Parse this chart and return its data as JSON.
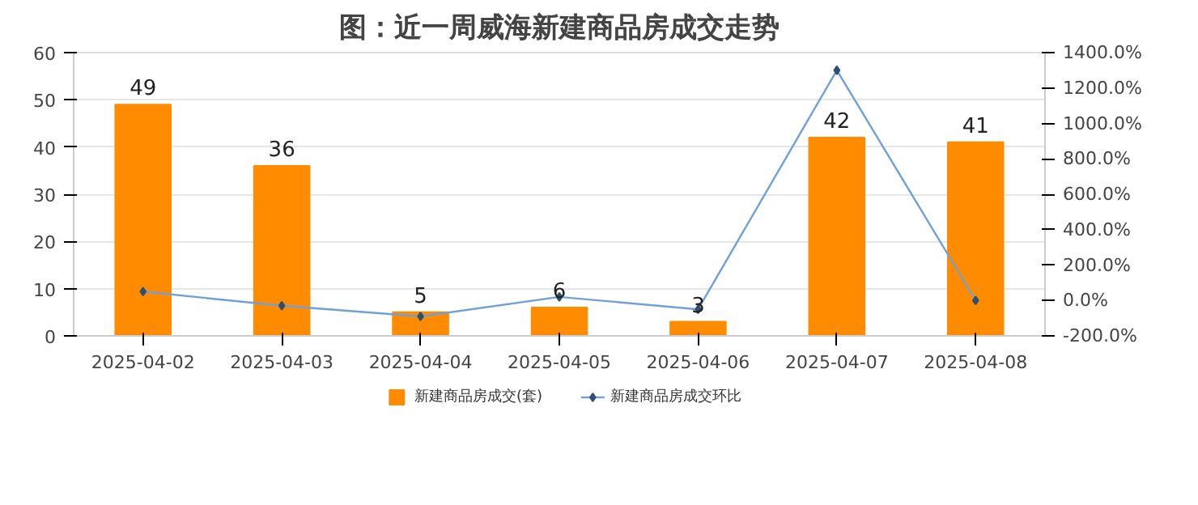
{
  "chart_data": {
    "type": "bar",
    "title": "图：近一周威海新建商品房成交走势",
    "categories": [
      "2025-04-02",
      "2025-04-03",
      "2025-04-04",
      "2025-04-05",
      "2025-04-06",
      "2025-04-07",
      "2025-04-08"
    ],
    "series": [
      {
        "name": "新建商品房成交(套)",
        "color": "#ff8c00",
        "values": [
          49,
          36,
          5,
          6,
          3,
          42,
          41
        ],
        "value_labels": [
          "49",
          "36",
          "5",
          "6",
          "3",
          "42",
          "41"
        ]
      },
      {
        "name": "新建商品房成交环比",
        "type": "line",
        "axis": "y2",
        "color": "#6fa0d8",
        "marker": "diamond",
        "values": [
          50,
          -30,
          -90,
          20,
          -50,
          1300,
          0
        ]
      }
    ],
    "ylim": [
      0,
      60
    ],
    "yticks": [
      0,
      10,
      20,
      30,
      40,
      50,
      60
    ],
    "y2lim": [
      -200,
      1400
    ],
    "y2ticks": [
      {
        "value": -200,
        "label": "-200.0%"
      },
      {
        "value": 0,
        "label": "0.0%"
      },
      {
        "value": 200,
        "label": "200.0%"
      },
      {
        "value": 400,
        "label": "400.0%"
      },
      {
        "value": 600,
        "label": "600.0%"
      },
      {
        "value": 800,
        "label": "800.0%"
      },
      {
        "value": 1000,
        "label": "1000.0%"
      },
      {
        "value": 1200,
        "label": "1200.0%"
      },
      {
        "value": 1400,
        "label": "1400.0%"
      }
    ],
    "grid": "y",
    "legend": "bottom"
  }
}
